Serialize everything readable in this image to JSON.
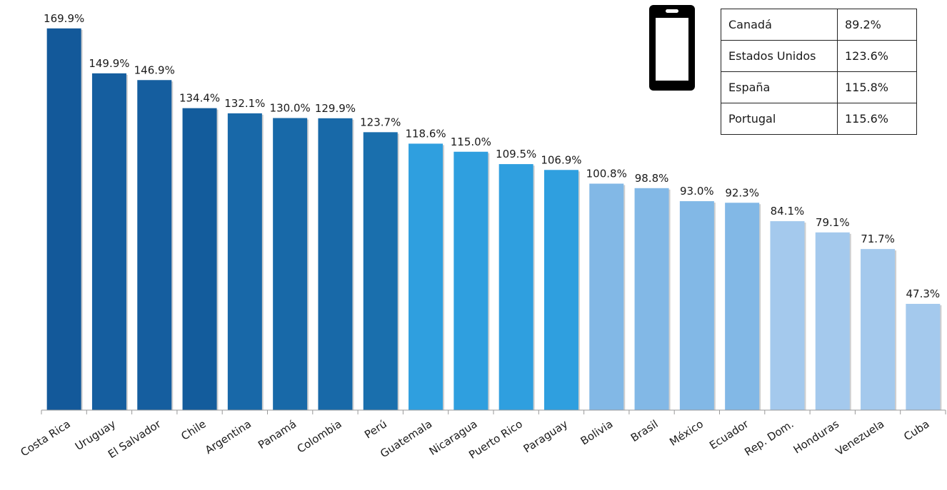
{
  "chart_data": {
    "type": "bar",
    "categories": [
      "Costa Rica",
      "Uruguay",
      "El Salvador",
      "Chile",
      "Argentina",
      "Panamá",
      "Colombia",
      "Perú",
      "Guatemala",
      "Nicaragua",
      "Puerto Rico",
      "Paraguay",
      "Bolivia",
      "Brasil",
      "México",
      "Ecuador",
      "Rep. Dom.",
      "Honduras",
      "Venezuela",
      "Cuba"
    ],
    "values": [
      169.9,
      149.9,
      146.9,
      134.4,
      132.1,
      130.0,
      129.9,
      123.7,
      118.6,
      115.0,
      109.5,
      106.9,
      100.8,
      98.8,
      93.0,
      92.3,
      84.1,
      79.1,
      71.7,
      47.3
    ],
    "data_labels": [
      "169.9%",
      "149.9%",
      "146.9%",
      "134.4%",
      "132.1%",
      "130.0%",
      "129.9%",
      "123.7%",
      "118.6%",
      "115.0%",
      "109.5%",
      "106.9%",
      "100.8%",
      "98.8%",
      "93.0%",
      "92.3%",
      "84.1%",
      "79.1%",
      "71.7%",
      "47.3%"
    ],
    "bar_colors": [
      "#13599a",
      "#155e9f",
      "#155e9f",
      "#135c9c",
      "#1868a8",
      "#1869a8",
      "#1869a8",
      "#1a6fad",
      "#2f9fdf",
      "#2f9fdf",
      "#2f9fdf",
      "#2f9fdf",
      "#82b8e6",
      "#82b8e6",
      "#82b8e6",
      "#82b8e6",
      "#a4c9ed",
      "#a4c9ed",
      "#a4c9ed",
      "#a4c9ed"
    ],
    "title": "",
    "xlabel": "",
    "ylabel": "",
    "ylim": [
      0,
      170
    ],
    "grid": false
  },
  "reference_table": {
    "rows": [
      {
        "country": "Canadá",
        "value": "89.2%"
      },
      {
        "country": "Estados Unidos",
        "value": "123.6%"
      },
      {
        "country": "España",
        "value": "115.8%"
      },
      {
        "country": "Portugal",
        "value": "115.6%"
      }
    ]
  },
  "icon": {
    "name": "mobile-phone-icon",
    "color": "#000000"
  }
}
